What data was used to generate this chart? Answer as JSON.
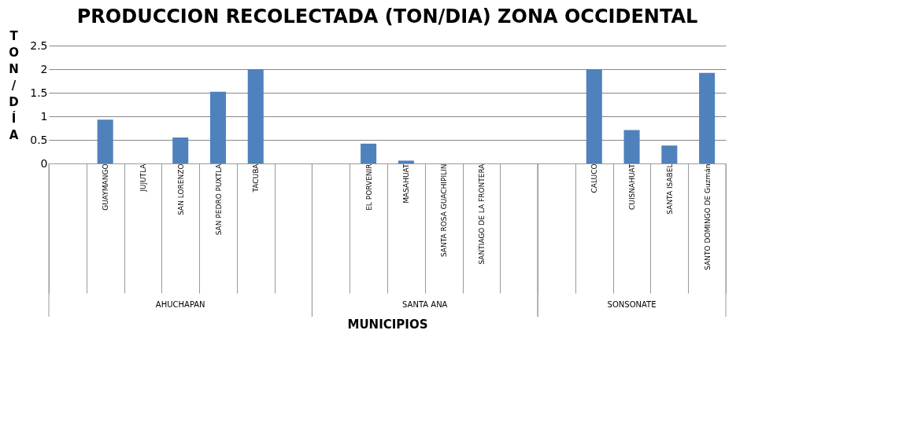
{
  "chart_data": {
    "type": "bar",
    "title": "PRODUCCION RECOLECTADA (TON/DIA) ZONA OCCIDENTAL",
    "xlabel": "MUNICIPIOS",
    "ylabel": "TON/DÍA",
    "categories": [
      null,
      "GUAYMANGO",
      "JUJUTLA",
      "SAN LORENZO",
      "SAN PEDRO PUXTLA",
      "TACUBA",
      null,
      null,
      "EL PORVENIR",
      "MASAHUAT",
      "SANTA ROSA GUACHIPILIN",
      "SANTIAGO DE LA FRONTERA",
      null,
      null,
      "CALUCO",
      "CUISNAHUAT",
      "SANTA ISABEL",
      "SANTO DOMINGO DE Guzmán"
    ],
    "values": [
      null,
      0.93,
      0,
      0.55,
      1.52,
      2.0,
      null,
      null,
      0.42,
      0.06,
      0,
      0,
      null,
      null,
      2.0,
      0.71,
      0.38,
      1.92
    ],
    "color": "#4f81bd",
    "ylim": [
      0,
      2.5
    ],
    "yticks": [
      0,
      0.5,
      1,
      1.5,
      2,
      2.5
    ],
    "grid": "y",
    "annotations": [
      "AHUCHAPAN",
      "SANTA ANA",
      "SONSONATE"
    ]
  }
}
